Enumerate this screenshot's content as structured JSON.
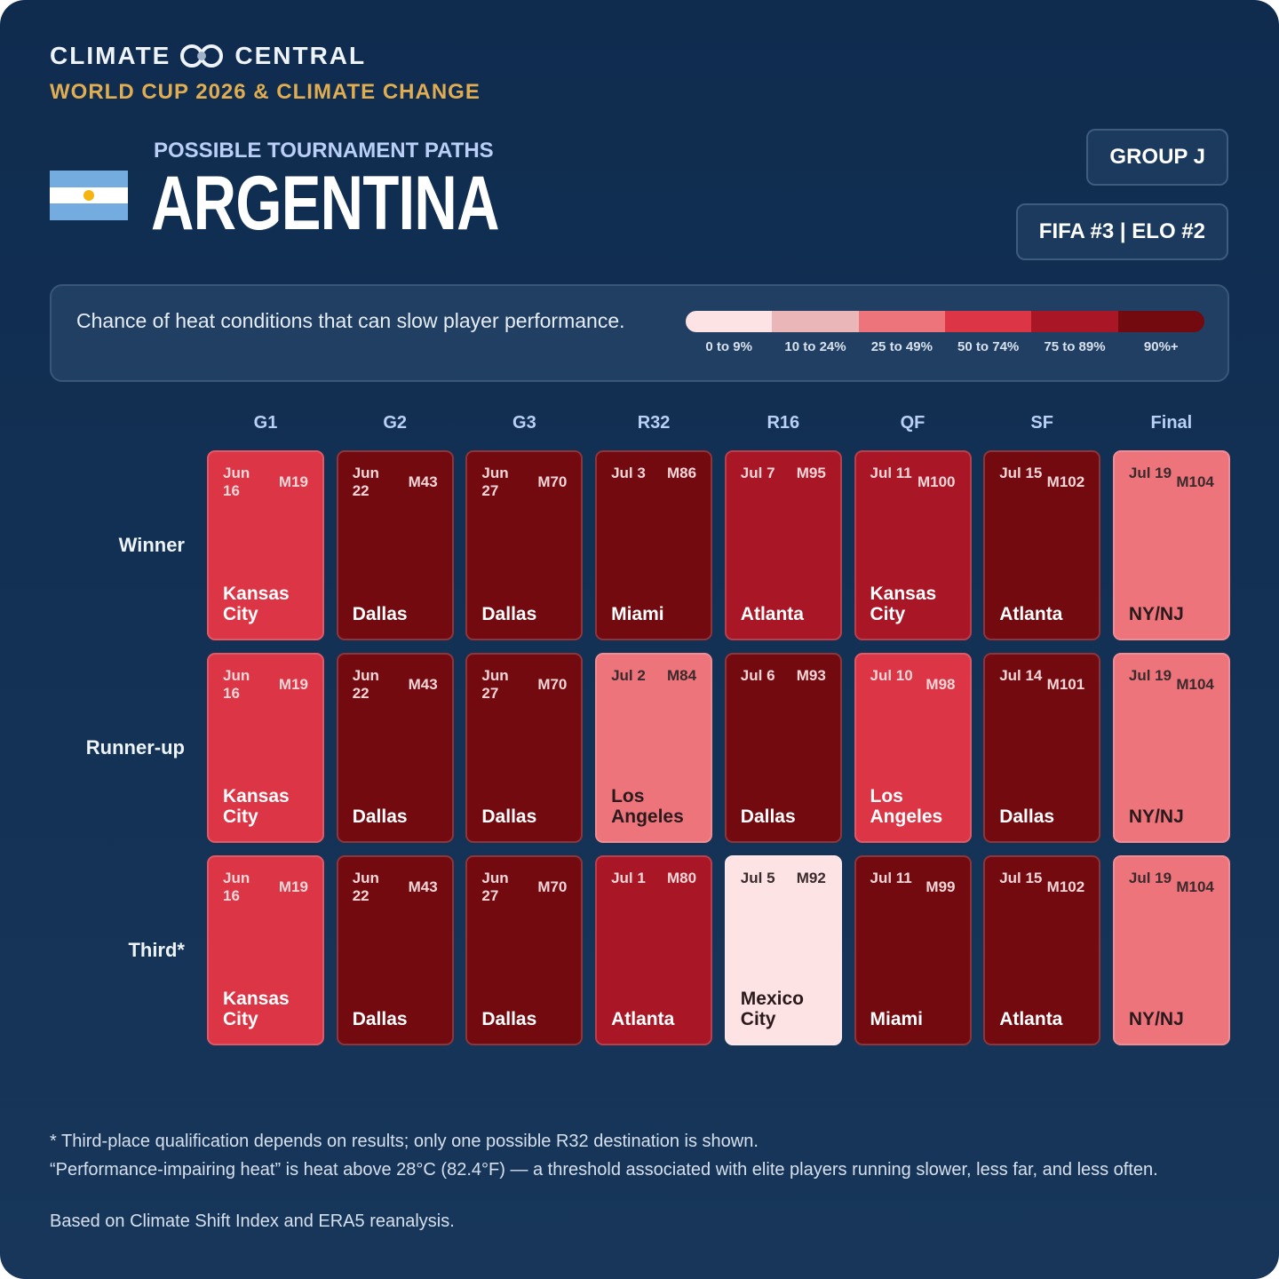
{
  "header": {
    "brand_left": "CLIMATE",
    "brand_right": "CENTRAL",
    "subtitle": "WORLD CUP 2026 & CLIMATE CHANGE"
  },
  "team": {
    "kicker": "POSSIBLE TOURNAMENT PATHS",
    "name": "ARGENTINA",
    "badges": [
      "GROUP J",
      "FIFA #3 | ELO #2"
    ]
  },
  "legend": {
    "text": "Chance of heat conditions that can slow player performance.",
    "levels": [
      {
        "label": "0 to 9%",
        "color": "#fde3e4"
      },
      {
        "label": "10 to 24%",
        "color": "#ebb6b8"
      },
      {
        "label": "25 to 49%",
        "color": "#ee747b"
      },
      {
        "label": "50 to 74%",
        "color": "#dc3545"
      },
      {
        "label": "75 to 89%",
        "color": "#a91727"
      },
      {
        "label": "90%+",
        "color": "#730a10"
      }
    ]
  },
  "columns": [
    "G1",
    "G2",
    "G3",
    "R32",
    "R16",
    "QF",
    "SF",
    "Final"
  ],
  "rows": [
    {
      "label": "Winner",
      "cells": [
        {
          "date": "Jun 16",
          "match": "M19",
          "city": "Kansas City",
          "color": "#dc3545"
        },
        {
          "date": "Jun 22",
          "match": "M43",
          "city": "Dallas",
          "color": "#730a10"
        },
        {
          "date": "Jun 27",
          "match": "M70",
          "city": "Dallas",
          "color": "#730a10"
        },
        {
          "date": "Jul 3",
          "match": "M86",
          "city": "Miami",
          "color": "#730a10"
        },
        {
          "date": "Jul 7",
          "match": "M95",
          "city": "Atlanta",
          "color": "#a91727"
        },
        {
          "date": "Jul 11",
          "match": "M100",
          "city": "Kansas City",
          "color": "#a91727"
        },
        {
          "date": "Jul 15",
          "match": "M102",
          "city": "Atlanta",
          "color": "#730a10"
        },
        {
          "date": "Jul 19",
          "match": "M104",
          "city": "NY/NJ",
          "color": "#ee747b"
        }
      ]
    },
    {
      "label": "Runner-up",
      "cells": [
        {
          "date": "Jun 16",
          "match": "M19",
          "city": "Kansas City",
          "color": "#dc3545"
        },
        {
          "date": "Jun 22",
          "match": "M43",
          "city": "Dallas",
          "color": "#730a10"
        },
        {
          "date": "Jun 27",
          "match": "M70",
          "city": "Dallas",
          "color": "#730a10"
        },
        {
          "date": "Jul 2",
          "match": "M84",
          "city": "Los Angeles",
          "color": "#ee747b"
        },
        {
          "date": "Jul 6",
          "match": "M93",
          "city": "Dallas",
          "color": "#730a10"
        },
        {
          "date": "Jul 10",
          "match": "M98",
          "city": "Los Angeles",
          "color": "#dc3545"
        },
        {
          "date": "Jul 14",
          "match": "M101",
          "city": "Dallas",
          "color": "#730a10"
        },
        {
          "date": "Jul 19",
          "match": "M104",
          "city": "NY/NJ",
          "color": "#ee747b"
        }
      ]
    },
    {
      "label": "Third*",
      "cells": [
        {
          "date": "Jun 16",
          "match": "M19",
          "city": "Kansas City",
          "color": "#dc3545"
        },
        {
          "date": "Jun 22",
          "match": "M43",
          "city": "Dallas",
          "color": "#730a10"
        },
        {
          "date": "Jun 27",
          "match": "M70",
          "city": "Dallas",
          "color": "#730a10"
        },
        {
          "date": "Jul 1",
          "match": "M80",
          "city": "Atlanta",
          "color": "#a91727"
        },
        {
          "date": "Jul 5",
          "match": "M92",
          "city": "Mexico City",
          "color": "#fde3e4"
        },
        {
          "date": "Jul 11",
          "match": "M99",
          "city": "Miami",
          "color": "#730a10"
        },
        {
          "date": "Jul 15",
          "match": "M102",
          "city": "Atlanta",
          "color": "#730a10"
        },
        {
          "date": "Jul 19",
          "match": "M104",
          "city": "NY/NJ",
          "color": "#ee747b"
        }
      ]
    }
  ],
  "footnotes": [
    "* Third-place qualification depends on results; only one possible R32 destination is shown.",
    "“Performance-impairing heat” is heat above 28°C (82.4°F) — a threshold associated with elite players running slower, less far, and less often.",
    "Based on Climate Shift Index and ERA5 reanalysis."
  ]
}
